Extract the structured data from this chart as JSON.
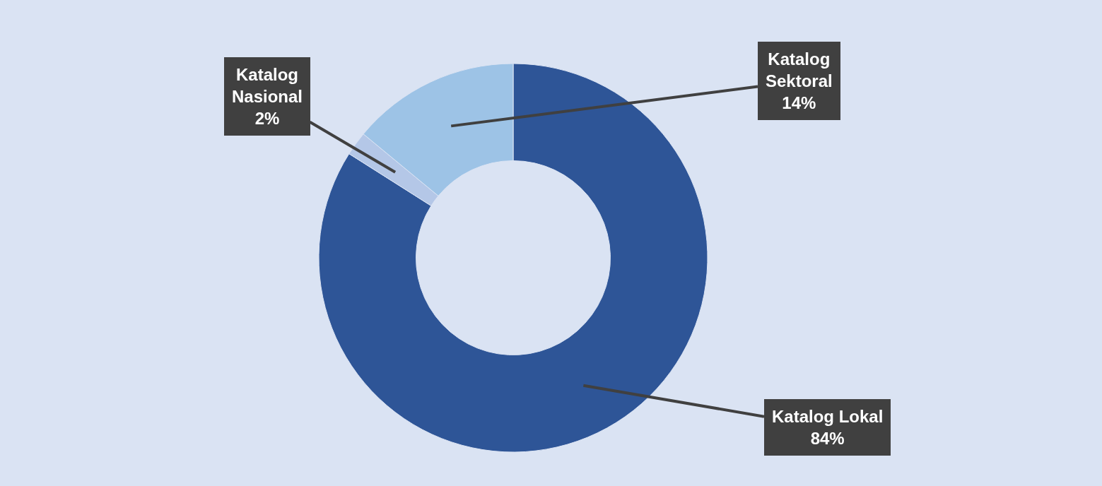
{
  "chart_data": {
    "type": "donut",
    "categories": [
      "Katalog Lokal",
      "Katalog Nasional",
      "Katalog Sektoral"
    ],
    "values": [
      84,
      2,
      14
    ],
    "value_labels": [
      "84%",
      "2%",
      "14%"
    ],
    "colors": [
      "#2e5597",
      "#b4c7e7",
      "#9dc3e6"
    ],
    "legend": false
  }
}
